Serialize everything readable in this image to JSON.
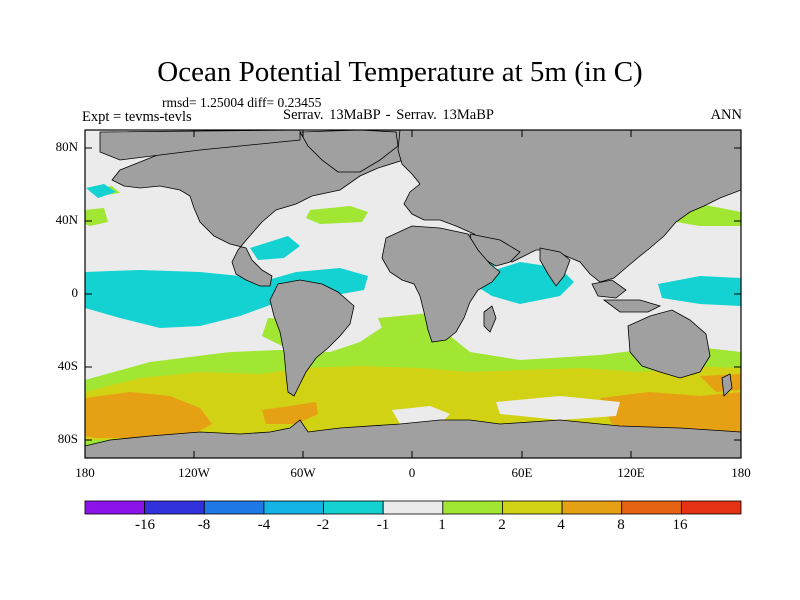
{
  "header": {
    "title": "Ocean Potential Temperature at 5m (in C)",
    "stats": "rmsd= 1.25004 diff= 0.23455",
    "expt": "Expt = tevms-tevls",
    "center": "Serrav.  13MaBP - Serrav.  13MaBP",
    "season": "ANN"
  },
  "axes": {
    "y_ticks": [
      "80N",
      "40N",
      "0",
      "40S",
      "80S"
    ],
    "x_ticks": [
      "180",
      "120W",
      "60W",
      "0",
      "60E",
      "120E",
      "180"
    ]
  },
  "colors": {
    "land": "#a0a0a0",
    "neutral": "#ebebeb",
    "bin_m2_m1": "#14d2d2",
    "bin_1_2": "#a0e632",
    "bin_2_4": "#d2d214",
    "bin_4_8": "#e6a014",
    "bin_8_16": "#e66414"
  },
  "colorbar": {
    "colors": [
      "#8c14eb",
      "#3232dc",
      "#1e78e6",
      "#14b4e6",
      "#14d2d2",
      "#ebebeb",
      "#a0e632",
      "#d2d214",
      "#e6a014",
      "#e66414",
      "#e63214"
    ],
    "labels": [
      "-16",
      "-8",
      "-4",
      "-2",
      "-1",
      "1",
      "2",
      "4",
      "8",
      "16"
    ]
  }
}
